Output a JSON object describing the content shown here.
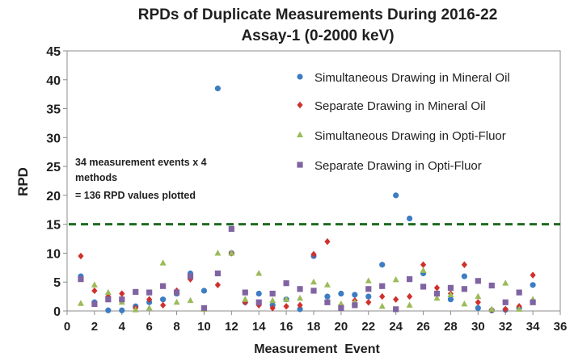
{
  "chart_data": {
    "type": "scatter",
    "title_line1": "RPDs of Duplicate Measurements During 2016-22",
    "title_line2": "Assay-1 (0-2000 keV)",
    "xlabel": "Measurement  Event",
    "ylabel": "RPD",
    "xlim": [
      0,
      36
    ],
    "ylim": [
      0,
      45
    ],
    "x_ticks": [
      0,
      2,
      4,
      6,
      8,
      10,
      12,
      14,
      16,
      18,
      20,
      22,
      24,
      26,
      28,
      30,
      32,
      34,
      36
    ],
    "y_ticks": [
      0,
      5,
      10,
      15,
      20,
      25,
      30,
      35,
      40,
      45
    ],
    "threshold": {
      "value": 15,
      "color": "#1e6b1e",
      "style": "dashed"
    },
    "annotation_lines": [
      "34 measurement events x 4",
      "methods",
      "= 136 RPD values plotted"
    ],
    "series": [
      {
        "name": "Simultaneous Drawing in Mineral Oil",
        "marker": "circle",
        "color": "#3c7dc4",
        "x": [
          1,
          2,
          3,
          4,
          5,
          6,
          7,
          8,
          9,
          10,
          11,
          12,
          13,
          14,
          15,
          16,
          17,
          18,
          19,
          20,
          21,
          22,
          23,
          24,
          25,
          26,
          27,
          28,
          29,
          30,
          31,
          32,
          33,
          34
        ],
        "y": [
          6.0,
          1.5,
          0.1,
          0.1,
          0.8,
          1.5,
          2.0,
          3.0,
          6.5,
          3.5,
          38.5,
          10.0,
          1.5,
          3.0,
          1.0,
          2.0,
          0.3,
          9.5,
          2.5,
          3.0,
          2.8,
          2.5,
          8.0,
          20.0,
          16.0,
          6.5,
          3.0,
          2.0,
          6.0,
          0.5,
          0.1,
          0.2,
          0.5,
          4.5
        ]
      },
      {
        "name": "Separate Drawing in Mineral Oil",
        "marker": "diamond",
        "color": "#d0312d",
        "x": [
          1,
          2,
          3,
          4,
          5,
          6,
          7,
          8,
          9,
          10,
          11,
          12,
          13,
          14,
          15,
          16,
          17,
          18,
          19,
          20,
          21,
          22,
          23,
          24,
          25,
          26,
          27,
          28,
          29,
          30,
          31,
          32,
          33,
          34
        ],
        "y": [
          9.5,
          3.5,
          2.5,
          3.0,
          0.5,
          2.0,
          1.0,
          3.5,
          5.5,
          0.3,
          4.5,
          10.0,
          1.5,
          1.0,
          0.5,
          0.8,
          1.0,
          9.8,
          12.0,
          1.0,
          1.8,
          1.5,
          2.5,
          2.0,
          2.5,
          8.0,
          4.0,
          3.0,
          8.0,
          1.5,
          0.2,
          0.3,
          0.8,
          6.2
        ]
      },
      {
        "name": "Simultaneous Drawing in Opti-Fluor",
        "marker": "triangle",
        "color": "#9bbb59",
        "x": [
          1,
          2,
          3,
          4,
          5,
          6,
          7,
          8,
          9,
          10,
          11,
          12,
          13,
          14,
          15,
          16,
          17,
          18,
          19,
          20,
          21,
          22,
          23,
          24,
          25,
          26,
          27,
          28,
          29,
          30,
          31,
          32,
          33,
          34
        ],
        "y": [
          1.3,
          4.5,
          3.2,
          1.5,
          0.2,
          0.5,
          8.3,
          1.5,
          1.8,
          0.3,
          10.0,
          10.0,
          2.0,
          6.5,
          1.8,
          2.0,
          2.2,
          5.0,
          4.5,
          1.2,
          1.5,
          5.2,
          0.8,
          5.4,
          1.0,
          7.0,
          2.2,
          2.8,
          1.2,
          2.5,
          0.3,
          4.8,
          0.3,
          2.0
        ]
      },
      {
        "name": "Separate Drawing in Opti-Fluor",
        "marker": "square",
        "color": "#8064a2",
        "x": [
          1,
          2,
          3,
          4,
          5,
          6,
          7,
          8,
          9,
          10,
          11,
          12,
          13,
          14,
          15,
          16,
          17,
          18,
          19,
          20,
          21,
          22,
          23,
          24,
          25,
          26,
          27,
          28,
          29,
          30,
          31,
          32,
          33,
          34
        ],
        "y": [
          5.5,
          1.2,
          2.0,
          2.0,
          3.3,
          3.2,
          4.3,
          3.2,
          6.0,
          0.5,
          6.5,
          14.2,
          3.2,
          1.5,
          3.0,
          4.8,
          3.8,
          3.5,
          1.5,
          0.5,
          1.0,
          3.8,
          4.3,
          0.3,
          5.5,
          4.2,
          3.0,
          4.0,
          3.8,
          5.2,
          4.4,
          1.5,
          3.2,
          1.5
        ]
      }
    ],
    "legend_position": "top-right"
  }
}
